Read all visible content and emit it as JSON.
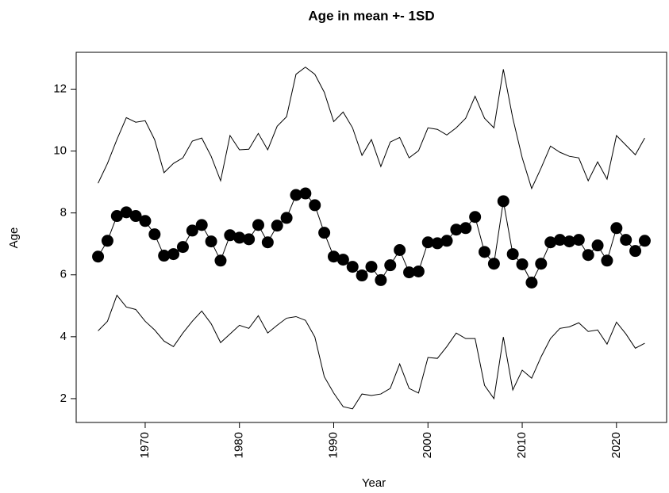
{
  "chart_data": {
    "type": "line",
    "title": "Age in mean +- 1SD",
    "x_label": "Year",
    "y_label": "Age",
    "x": [
      1965,
      1966,
      1967,
      1968,
      1969,
      1970,
      1971,
      1972,
      1973,
      1974,
      1975,
      1976,
      1977,
      1978,
      1979,
      1980,
      1981,
      1982,
      1983,
      1984,
      1985,
      1986,
      1987,
      1988,
      1989,
      1990,
      1991,
      1992,
      1993,
      1994,
      1995,
      1996,
      1997,
      1998,
      1999,
      2000,
      2001,
      2002,
      2003,
      2004,
      2005,
      2006,
      2007,
      2008,
      2009,
      2010,
      2011,
      2012,
      2013,
      2014,
      2015,
      2016,
      2017,
      2018,
      2019,
      2020,
      2021,
      2022,
      2023
    ],
    "series": [
      {
        "color": "#000000",
        "markers": true,
        "values": [
          6.59,
          7.1,
          7.9,
          8.02,
          7.9,
          7.74,
          7.31,
          6.62,
          6.67,
          6.9,
          7.43,
          7.61,
          7.08,
          6.46,
          7.28,
          7.2,
          7.15,
          7.61,
          7.05,
          7.59,
          7.84,
          8.58,
          8.63,
          8.25,
          7.36,
          6.59,
          6.49,
          6.26,
          5.98,
          6.26,
          5.83,
          6.31,
          6.8,
          6.08,
          6.11,
          7.05,
          7.02,
          7.1,
          7.46,
          7.51,
          7.87,
          6.74,
          6.36,
          8.38,
          6.67,
          6.34,
          5.75,
          6.36,
          7.05,
          7.13,
          7.08,
          7.13,
          6.64,
          6.95,
          6.46,
          7.51,
          7.13,
          6.77,
          7.1
        ]
      },
      {
        "color": "#000000",
        "markers": false,
        "values": [
          8.96,
          9.6,
          10.37,
          11.08,
          10.93,
          10.98,
          10.37,
          9.3,
          9.6,
          9.78,
          10.32,
          10.42,
          9.83,
          9.04,
          10.5,
          10.04,
          10.06,
          10.57,
          10.04,
          10.8,
          11.11,
          12.48,
          12.71,
          12.48,
          11.9,
          10.95,
          11.26,
          10.75,
          9.86,
          10.37,
          9.5,
          10.29,
          10.44,
          9.78,
          10.01,
          10.75,
          10.7,
          10.52,
          10.75,
          11.06,
          11.77,
          11.06,
          10.75,
          12.64,
          11.06,
          9.78,
          8.79,
          9.45,
          10.16,
          9.96,
          9.83,
          9.78,
          9.04,
          9.65,
          9.09,
          10.5,
          10.19,
          9.88,
          10.42
        ]
      },
      {
        "color": "#000000",
        "markers": false,
        "values": [
          4.19,
          4.5,
          5.34,
          4.96,
          4.88,
          4.5,
          4.22,
          3.86,
          3.68,
          4.12,
          4.5,
          4.83,
          4.42,
          3.81,
          4.09,
          4.37,
          4.27,
          4.68,
          4.12,
          4.37,
          4.6,
          4.65,
          4.53,
          3.99,
          2.71,
          2.18,
          1.74,
          1.67,
          2.15,
          2.1,
          2.15,
          2.33,
          3.12,
          2.33,
          2.18,
          3.33,
          3.3,
          3.68,
          4.12,
          3.94,
          3.94,
          2.43,
          2.0,
          3.99,
          2.28,
          2.92,
          2.66,
          3.35,
          3.94,
          4.27,
          4.32,
          4.45,
          4.17,
          4.22,
          3.76,
          4.47,
          4.09,
          3.63,
          3.79
        ]
      }
    ],
    "xlim": [
      1962.68,
      2025.32
    ],
    "ylim": [
      1.23,
      13.19
    ],
    "xticks": [
      1970,
      1980,
      1990,
      2000,
      2010,
      2020
    ],
    "yticks": [
      2,
      4,
      6,
      8,
      10,
      12
    ]
  }
}
